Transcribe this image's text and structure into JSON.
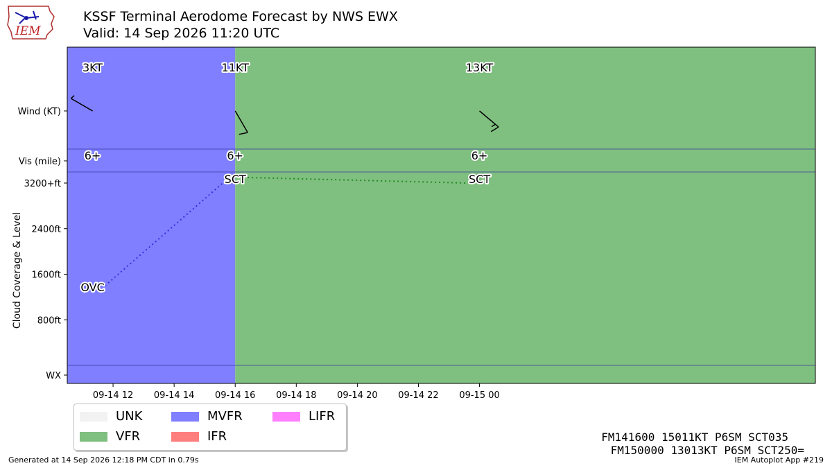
{
  "header": {
    "title": "KSSF Terminal Aerodome Forecast by NWS EWX",
    "subtitle": "Valid: 14 Sep 2026 11:20 UTC",
    "logo_text": "IEM"
  },
  "chart_data": {
    "type": "timeline",
    "x_range_hours": [
      10.5,
      35.0
    ],
    "x_ticks": [
      {
        "hour": 12,
        "label": "09-14 12"
      },
      {
        "hour": 14,
        "label": "09-14 14"
      },
      {
        "hour": 16,
        "label": "09-14 16"
      },
      {
        "hour": 18,
        "label": "09-14 18"
      },
      {
        "hour": 20,
        "label": "09-14 20"
      },
      {
        "hour": 22,
        "label": "09-14 22"
      },
      {
        "hour": 24,
        "label": "09-15 00"
      }
    ],
    "periods": [
      {
        "start": 10.5,
        "end": 16.0,
        "category": "MVFR"
      },
      {
        "start": 16.0,
        "end": 35.0,
        "category": "VFR"
      }
    ],
    "category_colors": {
      "UNK": "#f2f2f2",
      "VFR": "#7fbf7f",
      "MVFR": "#7f7fff",
      "IFR": "#ff7f7f",
      "LIFR": "#ff7fff"
    },
    "rows": {
      "wind_label": "Wind (KT)",
      "vis_label": "Vis (mile)",
      "wx_label": "WX",
      "cloud_axis_label": "Cloud Coverage & Level",
      "cloud_ticks": [
        {
          "value": 800,
          "label": "800ft"
        },
        {
          "value": 1600,
          "label": "1600ft"
        },
        {
          "value": 2400,
          "label": "2400ft"
        },
        {
          "value": 3200,
          "label": "3200+ft"
        }
      ],
      "cloud_range": [
        0,
        3200
      ]
    },
    "forecasts": [
      {
        "hour": 11.33,
        "wind_dir": 300,
        "wind_kt": 3,
        "wind_label": "3KT",
        "vis_label": "6+",
        "cloud_cover": "OVC",
        "cloud_level_ft": 1300
      },
      {
        "hour": 16.0,
        "wind_dir": 150,
        "wind_kt": 11,
        "wind_label": "11KT",
        "vis_label": "6+",
        "cloud_cover": "SCT",
        "cloud_level_ft": 3200
      },
      {
        "hour": 24.0,
        "wind_dir": 130,
        "wind_kt": 13,
        "wind_label": "13KT",
        "vis_label": "6+",
        "cloud_cover": "SCT",
        "cloud_level_ft": 3200
      }
    ],
    "cloud_line_colors": [
      "#3333dd",
      "#228b22"
    ]
  },
  "legend": [
    {
      "key": "UNK",
      "label": "UNK"
    },
    {
      "key": "MVFR",
      "label": "MVFR"
    },
    {
      "key": "LIFR",
      "label": "LIFR"
    },
    {
      "key": "VFR",
      "label": "VFR"
    },
    {
      "key": "IFR",
      "label": "IFR"
    }
  ],
  "taf_text": {
    "line1": "FM141600 15011KT P6SM SCT035",
    "line2": "FM150000 13013KT P6SM SCT250="
  },
  "footer": {
    "generated": "Generated at 14 Sep 2026 12:18 PM CDT in 0.79s",
    "app": "IEM Autoplot App #219"
  }
}
